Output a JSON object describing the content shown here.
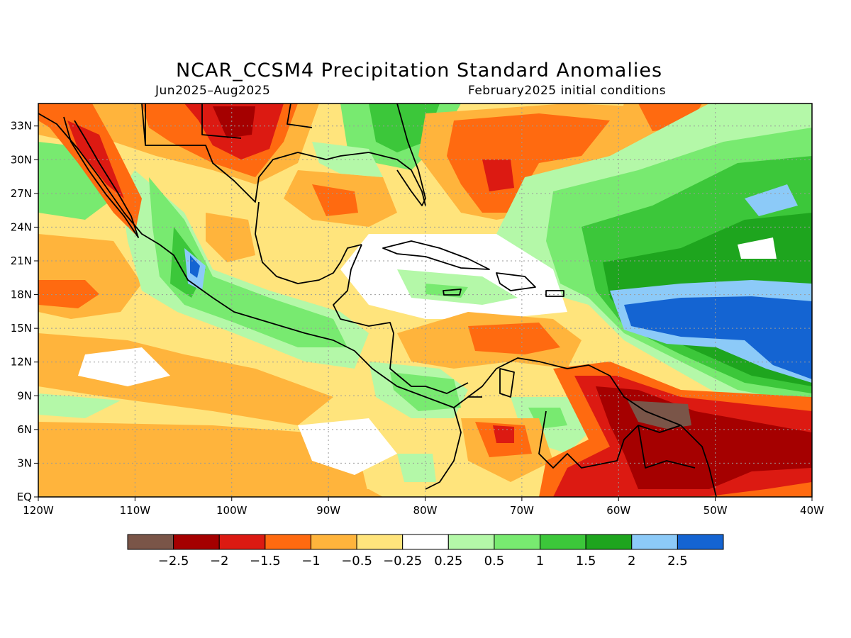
{
  "header": {
    "title": "NCAR_CCSM4 Precipitation Standard Anomalies",
    "period": "Jun2025–Aug2025",
    "init": "February2025 initial conditions"
  },
  "map": {
    "lon_range": [
      -120,
      -40
    ],
    "lat_range": [
      0,
      35
    ],
    "lon_ticks": [
      "120W",
      "110W",
      "100W",
      "90W",
      "80W",
      "70W",
      "60W",
      "50W",
      "40W"
    ],
    "lat_ticks": [
      "EQ",
      "3N",
      "6N",
      "9N",
      "12N",
      "15N",
      "18N",
      "21N",
      "24N",
      "27N",
      "30N",
      "33N"
    ]
  },
  "legend": {
    "colors": [
      "#7a5548",
      "#a50000",
      "#dc1a12",
      "#ff6a10",
      "#ffb43c",
      "#ffe47c",
      "#ffffff",
      "#b4f8a8",
      "#78ea70",
      "#3cc73a",
      "#1ea51e",
      "#8ccaf8",
      "#1464d2"
    ],
    "labels": [
      "−2.5",
      "−2",
      "−1.5",
      "−1",
      "−0.5",
      "−0.25",
      "0.25",
      "0.5",
      "1",
      "1.5",
      "2",
      "2.5"
    ]
  },
  "regions": [
    {
      "lon": -100,
      "lat": 31,
      "level": -1.5
    },
    {
      "lon": -103,
      "lat": 32,
      "level": -2
    },
    {
      "lon": -72,
      "lat": 27,
      "level": -1.5
    },
    {
      "lon": -73,
      "lat": 14,
      "level": -1
    },
    {
      "lon": -58,
      "lat": 7,
      "level": -2.5
    },
    {
      "lon": -52,
      "lat": 4,
      "level": -2
    },
    {
      "lon": -48,
      "lat": 15,
      "level": 2.5
    },
    {
      "lon": -45,
      "lat": 26,
      "level": 2
    },
    {
      "lon": -77,
      "lat": 8,
      "level": 1.5
    },
    {
      "lon": -104,
      "lat": 20,
      "level": 2
    }
  ]
}
